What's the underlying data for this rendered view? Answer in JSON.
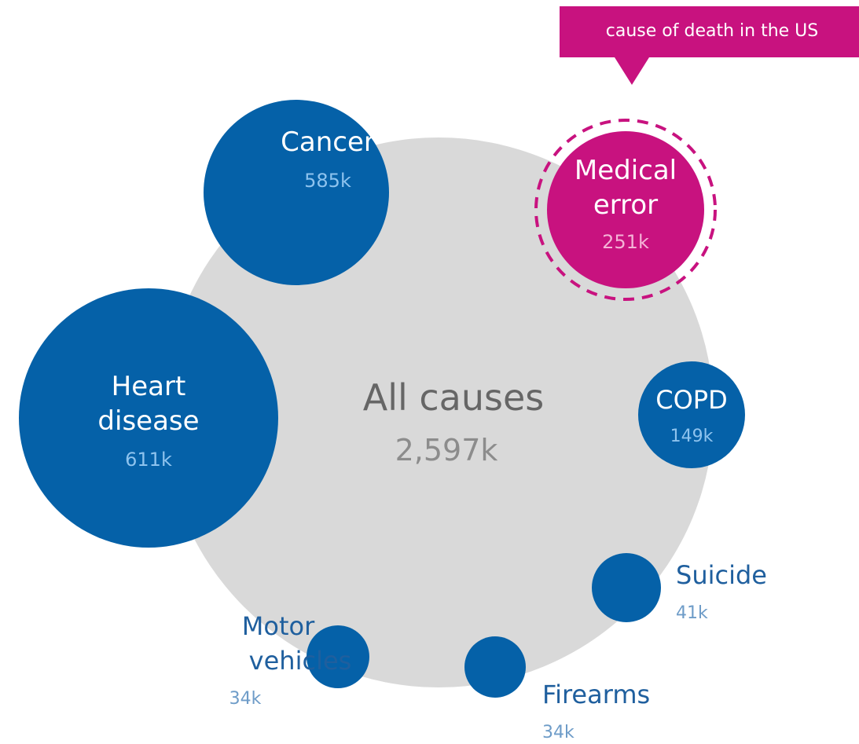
{
  "chart_data": {
    "type": "bubble",
    "title": "",
    "callout": {
      "text": "cause of death in the US",
      "color": "#C8127F"
    },
    "total": {
      "label": "All causes",
      "value_label": "2,597k",
      "value": 2597,
      "color": "#D9D9D9",
      "text_color": "#666666",
      "value_color": "#8C8C8C"
    },
    "items": [
      {
        "id": "cancer",
        "label_lines": [
          "Cancer"
        ],
        "value_label": "585k",
        "value": 585,
        "color": "#0561A8",
        "label_color": "#FFFFFF",
        "value_color": "#8EC3EE"
      },
      {
        "id": "medical-error",
        "label_lines": [
          "Medical",
          "error"
        ],
        "value_label": "251k",
        "value": 251,
        "color": "#C8127F",
        "label_color": "#FFFFFF",
        "value_color": "#F4B3D6",
        "dashed_outline": true
      },
      {
        "id": "heart-disease",
        "label_lines": [
          "Heart",
          "disease"
        ],
        "value_label": "611k",
        "value": 611,
        "color": "#0561A8",
        "label_color": "#FFFFFF",
        "value_color": "#8EC3EE"
      },
      {
        "id": "copd",
        "label_lines": [
          "COPD"
        ],
        "value_label": "149k",
        "value": 149,
        "color": "#0561A8",
        "label_color": "#FFFFFF",
        "value_color": "#8EC3EE"
      },
      {
        "id": "suicide",
        "label_lines": [
          "Suicide"
        ],
        "value_label": "41k",
        "value": 41,
        "color": "#0561A8",
        "label_color": "#1F5F9E",
        "value_color": "#6E9CC8"
      },
      {
        "id": "motor-vehicles",
        "label_lines": [
          "Motor",
          "vehicles"
        ],
        "value_label": "34k",
        "value": 34,
        "color": "#0561A8",
        "label_color": "#1F5F9E",
        "value_color": "#6E9CC8"
      },
      {
        "id": "firearms",
        "label_lines": [
          "Firearms"
        ],
        "value_label": "34k",
        "value": 34,
        "color": "#0561A8",
        "label_color": "#1F5F9E",
        "value_color": "#6E9CC8"
      }
    ]
  }
}
